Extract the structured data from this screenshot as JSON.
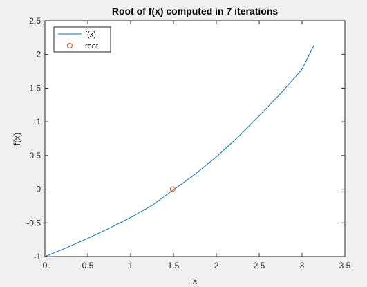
{
  "chart_data": {
    "type": "line",
    "title": "Root of f(x) computed in 7 iterations",
    "xlabel": "x",
    "ylabel": "f(x)",
    "xlim": [
      0,
      3.5
    ],
    "ylim": [
      -1,
      2.5
    ],
    "xticks": [
      "0",
      "0.5",
      "1",
      "1.5",
      "2",
      "2.5",
      "3",
      "3.5"
    ],
    "yticks": [
      "-1",
      "-0.5",
      "0",
      "0.5",
      "1",
      "1.5",
      "2",
      "2.5"
    ],
    "grid": false,
    "legend_position": "top-left",
    "series": [
      {
        "name": "f(x)",
        "kind": "line",
        "color": "#0072bd",
        "x": [
          0,
          0.25,
          0.5,
          0.75,
          1.0,
          1.25,
          1.5,
          1.75,
          2.0,
          2.25,
          2.5,
          2.75,
          3.0,
          3.14
        ],
        "y": [
          -1.0,
          -0.87,
          -0.73,
          -0.58,
          -0.42,
          -0.24,
          -0.01,
          0.22,
          0.48,
          0.77,
          1.09,
          1.42,
          1.78,
          2.14
        ]
      },
      {
        "name": "root",
        "kind": "marker",
        "marker": "circle",
        "color": "#d95319",
        "x": [
          1.49
        ],
        "y": [
          0
        ]
      }
    ]
  }
}
